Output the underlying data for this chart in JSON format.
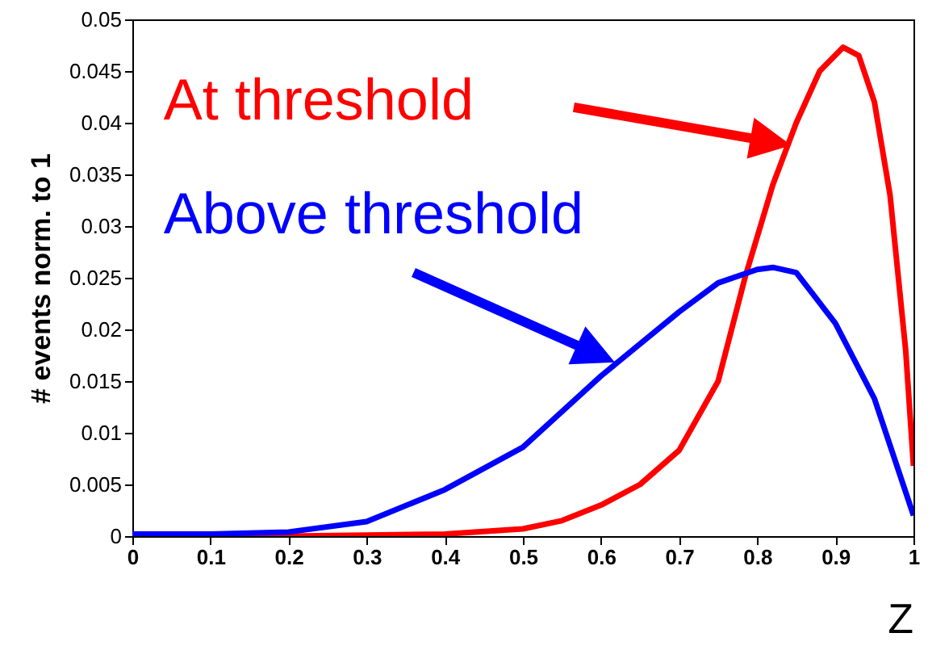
{
  "chart_data": {
    "type": "line",
    "xlabel": "Z",
    "ylabel": "# events norm. to 1",
    "xlim": [
      0,
      1
    ],
    "xticks": [
      0,
      0.1,
      0.2,
      0.3,
      0.4,
      0.5,
      0.6,
      0.7,
      0.8,
      0.9,
      1
    ],
    "ylim": [
      0,
      0.05
    ],
    "yticks": [
      0,
      0.005,
      0.01,
      0.015,
      0.02,
      0.025,
      0.03,
      0.035,
      0.04,
      0.045,
      0.05
    ],
    "grid": false,
    "legend": "top left",
    "marker": "none",
    "line_style": "solid",
    "series": [
      {
        "name": "At threshold",
        "color": "#ff0000",
        "x": [
          0,
          0.2,
          0.3,
          0.4,
          0.5,
          0.55,
          0.6,
          0.65,
          0.7,
          0.75,
          0.785,
          0.82,
          0.85,
          0.88,
          0.91,
          0.93,
          0.95,
          0.97,
          0.99,
          1.0
        ],
        "values": [
          0,
          0,
          0.0001,
          0.0002,
          0.0007,
          0.0015,
          0.003,
          0.005,
          0.0083,
          0.015,
          0.0252,
          0.034,
          0.04,
          0.045,
          0.0473,
          0.0465,
          0.042,
          0.033,
          0.018,
          0.0068
        ]
      },
      {
        "name": "Above threshold",
        "color": "#0000ff",
        "x": [
          0,
          0.1,
          0.2,
          0.3,
          0.4,
          0.5,
          0.6,
          0.7,
          0.75,
          0.8,
          0.82,
          0.85,
          0.9,
          0.95,
          1.0
        ],
        "values": [
          0.0002,
          0.0002,
          0.0004,
          0.0014,
          0.0045,
          0.0086,
          0.0155,
          0.0217,
          0.0245,
          0.0258,
          0.026,
          0.0255,
          0.0206,
          0.0133,
          0.002
        ]
      }
    ]
  }
}
